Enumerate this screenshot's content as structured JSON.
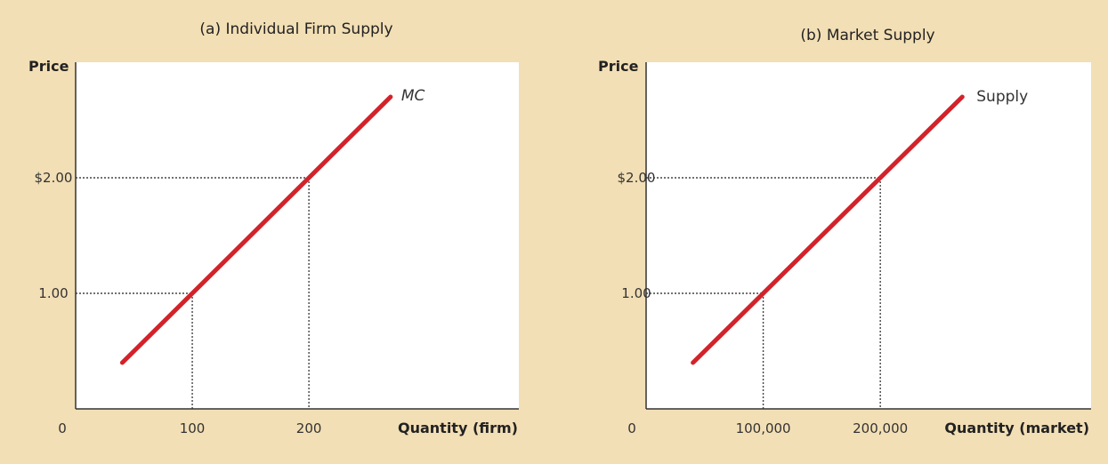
{
  "colors": {
    "background": "#f3dfb5",
    "plot_area": "#ffffff",
    "curve": "#d2232a",
    "axis": "#333333",
    "guide": "#444444"
  },
  "chart_data": [
    {
      "type": "line",
      "title": "(a) Individual Firm Supply",
      "ylabel": "Price",
      "xlabel": "Quantity (firm)",
      "origin_label": "0",
      "xlim": [
        0,
        380
      ],
      "ylim": [
        0,
        3.0
      ],
      "grid": false,
      "x_ticks": [
        {
          "value": 100,
          "label": "100"
        },
        {
          "value": 200,
          "label": "200"
        }
      ],
      "y_ticks": [
        {
          "value": 1,
          "label": "1.00"
        },
        {
          "value": 2,
          "label": "$2.00"
        }
      ],
      "series": [
        {
          "name": "MC",
          "points": [
            {
              "x": 40,
              "y": 0.4
            },
            {
              "x": 270,
              "y": 2.7
            }
          ]
        }
      ],
      "guides": [
        {
          "x": 100,
          "y": 1
        },
        {
          "x": 200,
          "y": 2
        }
      ]
    },
    {
      "type": "line",
      "title": "(b) Market Supply",
      "ylabel": "Price",
      "xlabel": "Quantity (market)",
      "origin_label": "0",
      "xlim": [
        0,
        380000
      ],
      "ylim": [
        0,
        3.0
      ],
      "grid": false,
      "x_ticks": [
        {
          "value": 100000,
          "label": "100,000"
        },
        {
          "value": 200000,
          "label": "200,000"
        }
      ],
      "y_ticks": [
        {
          "value": 1,
          "label": "1.00"
        },
        {
          "value": 2,
          "label": "$2.00"
        }
      ],
      "series": [
        {
          "name": "Supply",
          "points": [
            {
              "x": 40000,
              "y": 0.4
            },
            {
              "x": 270000,
              "y": 2.7
            }
          ]
        }
      ],
      "guides": [
        {
          "x": 100000,
          "y": 1
        },
        {
          "x": 200000,
          "y": 2
        }
      ]
    }
  ]
}
